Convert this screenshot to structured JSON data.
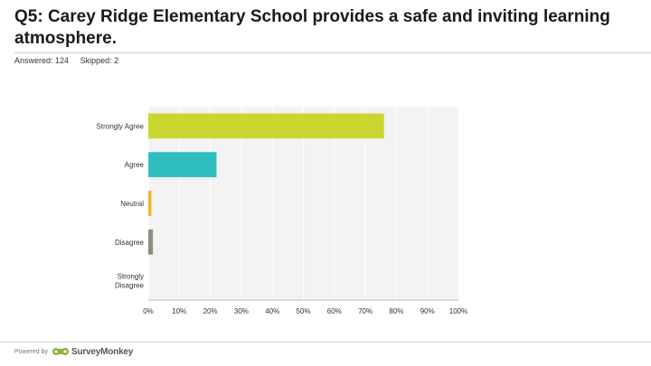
{
  "question": {
    "title": "Q5: Carey Ridge Elementary School provides a safe and inviting learning atmosphere.",
    "answered_label": "Answered: 124",
    "skipped_label": "Skipped: 2"
  },
  "footer": {
    "powered_by": "Powered by",
    "brand": "SurveyMonkey",
    "logo_icon": "surveymonkey-logo-icon"
  },
  "chart_data": {
    "type": "bar",
    "orientation": "horizontal",
    "categories": [
      "Strongly Agree",
      "Agree",
      "Neutral",
      "Disagree",
      "Strongly Disagree"
    ],
    "values": [
      76,
      22,
      1,
      1.5,
      0
    ],
    "colors": [
      "#c9d630",
      "#2fbfc1",
      "#f2b233",
      "#8b8f80",
      "#b0b0b0"
    ],
    "xlim": [
      0,
      100
    ],
    "xticks": [
      0,
      10,
      20,
      30,
      40,
      50,
      60,
      70,
      80,
      90,
      100
    ],
    "xtick_labels": [
      "0%",
      "10%",
      "20%",
      "30%",
      "40%",
      "50%",
      "60%",
      "70%",
      "80%",
      "90%",
      "100%"
    ],
    "grid": true,
    "background": "#f3f3f3",
    "title": "",
    "xlabel": "",
    "ylabel": ""
  }
}
